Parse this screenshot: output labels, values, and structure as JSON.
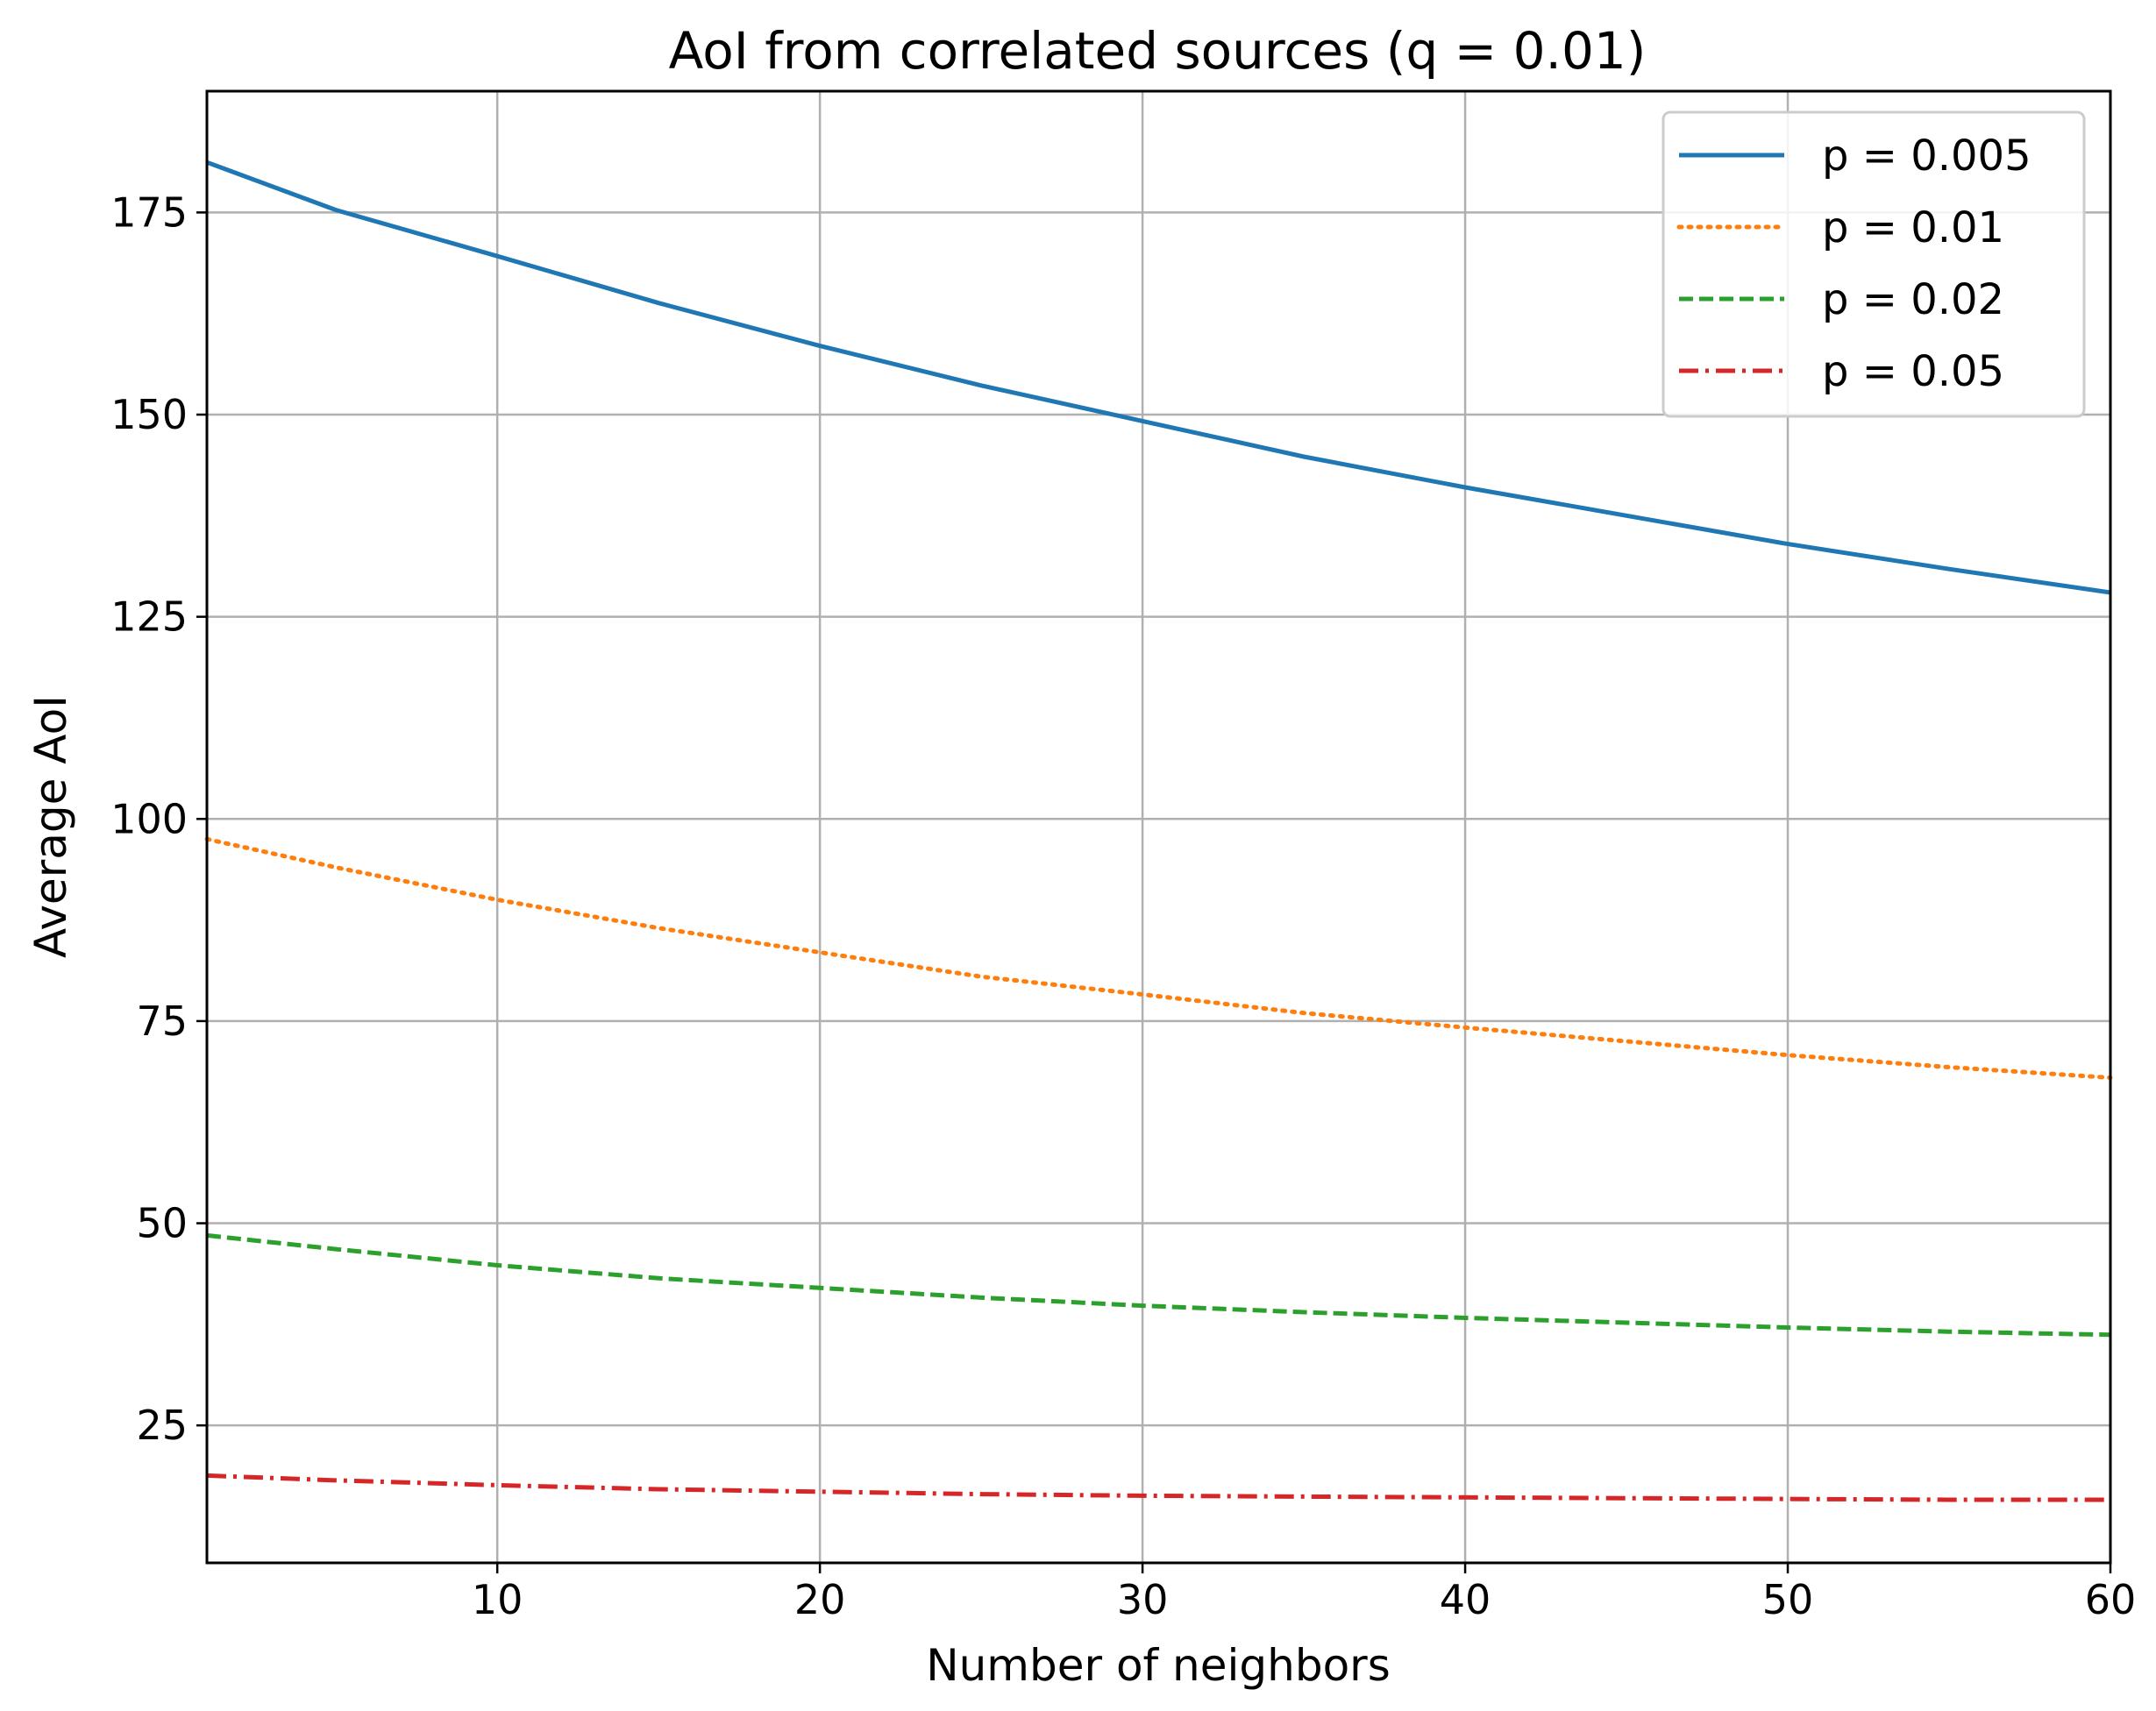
{
  "chart_data": {
    "type": "line",
    "title": "AoI from correlated sources (q = 0.01)",
    "xlabel": "Number of neighbors",
    "ylabel": "Average AoI",
    "xlim": [
      1,
      60
    ],
    "ylim": [
      8,
      190
    ],
    "xticks": [
      10,
      20,
      30,
      40,
      50,
      60
    ],
    "yticks": [
      25,
      50,
      75,
      100,
      125,
      150,
      175
    ],
    "grid": true,
    "legend_position": "top-right",
    "x": [
      1,
      5,
      10,
      15,
      20,
      25,
      30,
      35,
      40,
      45,
      50,
      55,
      60
    ],
    "series": [
      {
        "name": "p = 0.005",
        "color": "#1f77b4",
        "style": "solid",
        "values": [
          181.2,
          175.3,
          169.6,
          163.8,
          158.5,
          153.6,
          149.2,
          144.8,
          141.0,
          137.5,
          134.0,
          130.9,
          128.0
        ]
      },
      {
        "name": "p = 0.01",
        "color": "#ff7f0e",
        "style": "dotted",
        "values": [
          97.5,
          94.0,
          90.0,
          86.5,
          83.5,
          80.5,
          78.3,
          76.0,
          74.2,
          72.5,
          70.8,
          69.3,
          68.0
        ]
      },
      {
        "name": "p = 0.02",
        "color": "#2ca02c",
        "style": "dashed",
        "values": [
          48.5,
          46.8,
          44.8,
          43.2,
          42.0,
          40.8,
          39.8,
          39.0,
          38.3,
          37.7,
          37.1,
          36.6,
          36.2
        ]
      },
      {
        "name": "p = 0.05",
        "color": "#d62728",
        "style": "dashdot",
        "values": [
          18.8,
          18.2,
          17.6,
          17.1,
          16.8,
          16.5,
          16.3,
          16.2,
          16.1,
          16.0,
          15.9,
          15.8,
          15.8
        ]
      }
    ]
  }
}
